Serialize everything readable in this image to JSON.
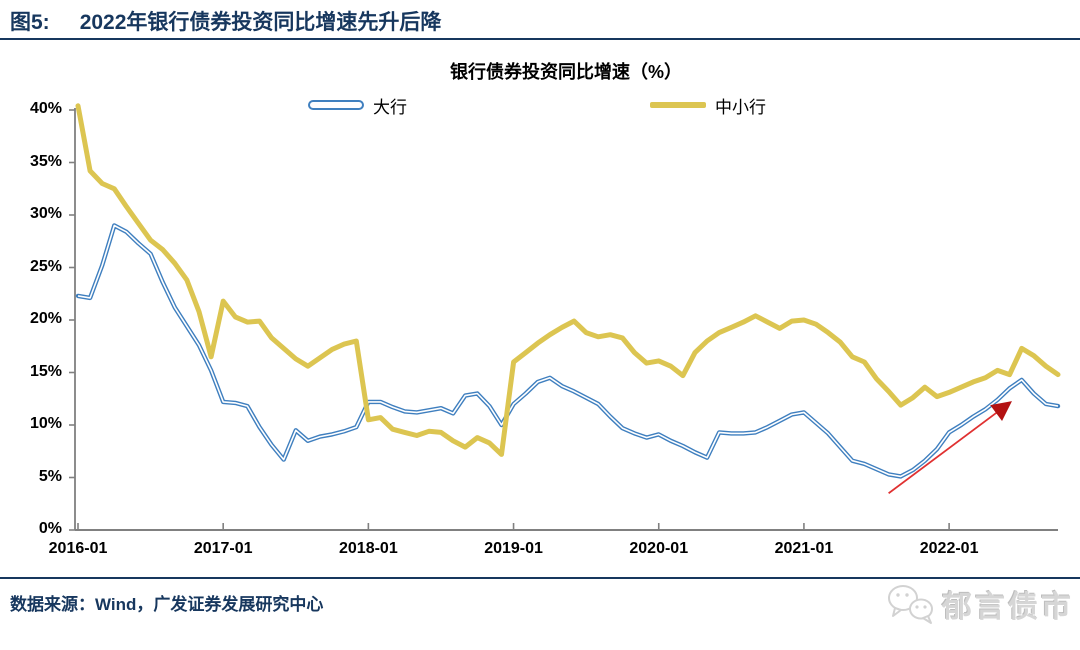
{
  "figure": {
    "prefix": "图5:",
    "title": "2022年银行债券投资同比增速先升后降"
  },
  "footer": {
    "source": "数据来源：Wind，广发证券发展研究中心",
    "watermark": "郁言债市"
  },
  "colors": {
    "title_navy": "#17375E",
    "big_bank_blue": "#3F7FBF",
    "small_bank_yellow": "#DCC551",
    "arrow_line_red": "#E03131",
    "arrow_head_red": "#B31212",
    "axis_gray": "#808080"
  },
  "chart_data": {
    "type": "line",
    "title": "银行债券投资同比增速（%）",
    "grid": false,
    "legend_position": "top",
    "ylim": [
      0,
      40
    ],
    "yticks": [
      "0%",
      "5%",
      "10%",
      "15%",
      "20%",
      "25%",
      "30%",
      "35%",
      "40%"
    ],
    "xticks": [
      "2016-01",
      "2017-01",
      "2018-01",
      "2019-01",
      "2020-01",
      "2021-01",
      "2022-01"
    ],
    "x": [
      "2016-01",
      "2016-02",
      "2016-03",
      "2016-04",
      "2016-05",
      "2016-06",
      "2016-07",
      "2016-08",
      "2016-09",
      "2016-10",
      "2016-11",
      "2016-12",
      "2017-01",
      "2017-02",
      "2017-03",
      "2017-04",
      "2017-05",
      "2017-06",
      "2017-07",
      "2017-08",
      "2017-09",
      "2017-10",
      "2017-11",
      "2017-12",
      "2018-01",
      "2018-02",
      "2018-03",
      "2018-04",
      "2018-05",
      "2018-06",
      "2018-07",
      "2018-08",
      "2018-09",
      "2018-10",
      "2018-11",
      "2018-12",
      "2019-01",
      "2019-02",
      "2019-03",
      "2019-04",
      "2019-05",
      "2019-06",
      "2019-07",
      "2019-08",
      "2019-09",
      "2019-10",
      "2019-11",
      "2019-12",
      "2020-01",
      "2020-02",
      "2020-03",
      "2020-04",
      "2020-05",
      "2020-06",
      "2020-07",
      "2020-08",
      "2020-09",
      "2020-10",
      "2020-11",
      "2020-12",
      "2021-01",
      "2021-02",
      "2021-03",
      "2021-04",
      "2021-05",
      "2021-06",
      "2021-07",
      "2021-08",
      "2021-09",
      "2021-10",
      "2021-11",
      "2021-12",
      "2022-01",
      "2022-02",
      "2022-03",
      "2022-04",
      "2022-05",
      "2022-06",
      "2022-07",
      "2022-08",
      "2022-09",
      "2022-10"
    ],
    "series": [
      {
        "name": "大行",
        "color": "#3F7FBF",
        "style": "double-line",
        "values": [
          22.3,
          22.1,
          25.2,
          29.0,
          28.4,
          27.3,
          26.3,
          23.6,
          21.2,
          19.4,
          17.6,
          15.2,
          12.2,
          12.1,
          11.8,
          9.8,
          8.1,
          6.7,
          9.5,
          8.5,
          8.9,
          9.1,
          9.4,
          9.8,
          12.2,
          12.2,
          11.7,
          11.3,
          11.2,
          11.4,
          11.6,
          11.1,
          12.8,
          13.0,
          11.8,
          10.0,
          12.0,
          13.0,
          14.1,
          14.5,
          13.7,
          13.2,
          12.6,
          12.0,
          10.8,
          9.7,
          9.2,
          8.8,
          9.1,
          8.5,
          8.0,
          7.4,
          6.9,
          9.3,
          9.2,
          9.2,
          9.3,
          9.8,
          10.4,
          11.0,
          11.2,
          10.2,
          9.2,
          7.9,
          6.6,
          6.3,
          5.8,
          5.3,
          5.1,
          5.7,
          6.6,
          7.7,
          9.3,
          10.0,
          10.8,
          11.5,
          12.4,
          13.5,
          14.3,
          13.0,
          12.0,
          11.8
        ]
      },
      {
        "name": "中小行",
        "color": "#DCC551",
        "style": "thick-line",
        "values": [
          40.4,
          34.2,
          33.0,
          32.5,
          30.8,
          29.2,
          27.6,
          26.7,
          25.4,
          23.8,
          20.8,
          16.5,
          21.8,
          20.3,
          19.8,
          19.9,
          18.3,
          17.3,
          16.3,
          15.6,
          16.4,
          17.2,
          17.7,
          18.0,
          10.5,
          10.7,
          9.6,
          9.3,
          9.0,
          9.4,
          9.3,
          8.5,
          7.9,
          8.8,
          8.3,
          7.2,
          16.0,
          16.9,
          17.8,
          18.6,
          19.3,
          19.9,
          18.8,
          18.4,
          18.6,
          18.3,
          16.9,
          15.9,
          16.1,
          15.6,
          14.7,
          16.9,
          18.0,
          18.8,
          19.3,
          19.8,
          20.4,
          19.8,
          19.2,
          19.9,
          20.0,
          19.6,
          18.8,
          17.9,
          16.5,
          16.0,
          14.4,
          13.2,
          11.9,
          12.6,
          13.6,
          12.7,
          13.1,
          13.6,
          14.1,
          14.5,
          15.2,
          14.8,
          17.3,
          16.6,
          15.6,
          14.8
        ]
      }
    ],
    "annotation": {
      "shape": "arrow",
      "from": {
        "x": "2021-08",
        "y": 3.5
      },
      "to": {
        "x": "2022-06",
        "y": 12.1
      }
    }
  }
}
